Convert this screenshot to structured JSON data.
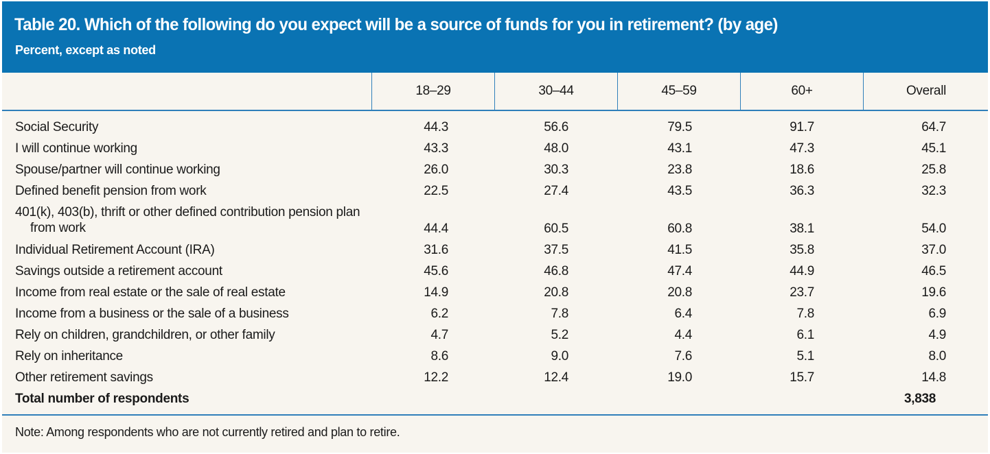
{
  "header": {
    "title": "Table 20. Which of the following do you expect will be a source of funds for you in retirement? (by age)",
    "subtitle": "Percent, except as noted"
  },
  "columns": [
    "18–29",
    "30–44",
    "45–59",
    "60+",
    "Overall"
  ],
  "rows": [
    {
      "label": "Social Security",
      "values": [
        "44.3",
        "56.6",
        "79.5",
        "91.7",
        "64.7"
      ]
    },
    {
      "label": "I will continue working",
      "values": [
        "43.3",
        "48.0",
        "43.1",
        "47.3",
        "45.1"
      ]
    },
    {
      "label": "Spouse/partner will continue working",
      "values": [
        "26.0",
        "30.3",
        "23.8",
        "18.6",
        "25.8"
      ]
    },
    {
      "label": "Defined benefit pension from work",
      "values": [
        "22.5",
        "27.4",
        "43.5",
        "36.3",
        "32.3"
      ]
    },
    {
      "label": "401(k), 403(b), thrift or other defined contribution pension plan",
      "label_line2": "from work",
      "values": [
        "44.4",
        "60.5",
        "60.8",
        "38.1",
        "54.0"
      ]
    },
    {
      "label": "Individual Retirement Account (IRA)",
      "values": [
        "31.6",
        "37.5",
        "41.5",
        "35.8",
        "37.0"
      ]
    },
    {
      "label": "Savings outside a retirement account",
      "values": [
        "45.6",
        "46.8",
        "47.4",
        "44.9",
        "46.5"
      ]
    },
    {
      "label": "Income from real estate or the sale of real estate",
      "values": [
        "14.9",
        "20.8",
        "20.8",
        "23.7",
        "19.6"
      ]
    },
    {
      "label": "Income from a business or the sale of a business",
      "values": [
        "6.2",
        "7.8",
        "6.4",
        "7.8",
        "6.9"
      ]
    },
    {
      "label": "Rely on children, grandchildren, or other family",
      "values": [
        "4.7",
        "5.2",
        "4.4",
        "6.1",
        "4.9"
      ]
    },
    {
      "label": "Rely on inheritance",
      "values": [
        "8.6",
        "9.0",
        "7.6",
        "5.1",
        "8.0"
      ]
    },
    {
      "label": "Other retirement savings",
      "values": [
        "12.2",
        "12.4",
        "19.0",
        "15.7",
        "14.8"
      ]
    }
  ],
  "total": {
    "label": "Total number of respondents",
    "overall": "3,838"
  },
  "note": "Note: Among respondents who are not currently retired and plan to retire.",
  "colors": {
    "header_bg": "#0a73b3",
    "rule": "#2f7fba",
    "body_bg": "#f8f5ef"
  }
}
